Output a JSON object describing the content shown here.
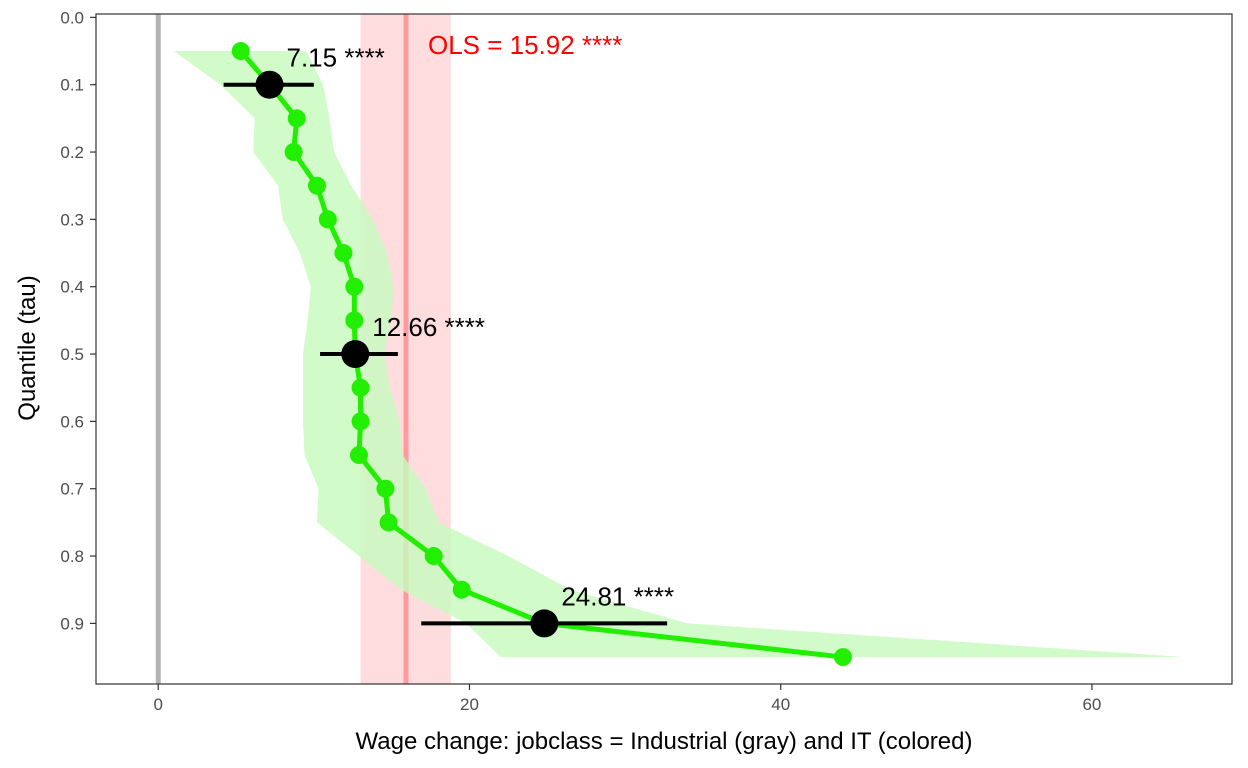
{
  "chart_data": {
    "type": "line",
    "xlabel": "Wage change: jobclass = Industrial (gray) and IT (colored)",
    "ylabel": "Quantile (tau)",
    "xlim": [
      -4,
      69
    ],
    "ylim": [
      -0.005,
      0.99
    ],
    "y_reversed": true,
    "grid": false,
    "x_ticks": [
      0,
      20,
      40,
      60
    ],
    "x_tick_labels": [
      "0",
      "20",
      "40",
      "60"
    ],
    "y_ticks": [
      0.0,
      0.1,
      0.2,
      0.3,
      0.4,
      0.5,
      0.6,
      0.7,
      0.8,
      0.9
    ],
    "y_tick_labels": [
      "0.0",
      "0.1",
      "0.2",
      "0.3",
      "0.4",
      "0.5",
      "0.6",
      "0.7",
      "0.8",
      "0.9"
    ],
    "colors": {
      "it_line": "#22ee00",
      "it_band": "#c5fbbd",
      "ols_band": "#ffd6d8",
      "ols_line": "#ff7f84",
      "industrial_line": "#b3b3b3",
      "highlight": "#000000",
      "ols_text": "#ff0000"
    },
    "industrial_line_x": 0,
    "series": [
      {
        "tau": [
          0.05,
          0.1,
          0.15,
          0.2,
          0.25,
          0.3,
          0.35,
          0.4,
          0.45,
          0.5,
          0.55,
          0.6,
          0.65,
          0.7,
          0.75,
          0.8,
          0.85,
          0.9,
          0.95
        ],
        "x": [
          5.3,
          7.15,
          8.9,
          8.7,
          10.2,
          10.9,
          11.9,
          12.6,
          12.6,
          12.66,
          13.0,
          13.0,
          12.9,
          14.6,
          14.8,
          17.7,
          19.5,
          24.81,
          44.0
        ],
        "band_low": [
          1.0,
          4.0,
          6.2,
          6.1,
          7.7,
          8.0,
          9.1,
          9.8,
          9.6,
          9.3,
          9.3,
          9.3,
          9.4,
          10.3,
          10.2,
          12.9,
          15.6,
          19.8,
          22.0
        ],
        "band_high": [
          9.5,
          10.6,
          11.0,
          11.3,
          12.4,
          13.8,
          14.7,
          15.1,
          15.0,
          14.5,
          14.9,
          15.5,
          15.7,
          17.2,
          18.0,
          22.5,
          26.5,
          34.0,
          66.0
        ]
      }
    ],
    "highlighted": [
      {
        "tau": 0.1,
        "x": 7.15,
        "ci": [
          4.2,
          10.0
        ],
        "label": "7.15 ****"
      },
      {
        "tau": 0.5,
        "x": 12.66,
        "ci": [
          10.4,
          15.4
        ],
        "label": "12.66 ****"
      },
      {
        "tau": 0.9,
        "x": 24.81,
        "ci": [
          16.9,
          32.7
        ],
        "label": "24.81 ****"
      }
    ],
    "ols": {
      "x": 15.92,
      "ci": [
        13.0,
        18.8
      ],
      "label": "OLS =  15.92 ****"
    }
  }
}
